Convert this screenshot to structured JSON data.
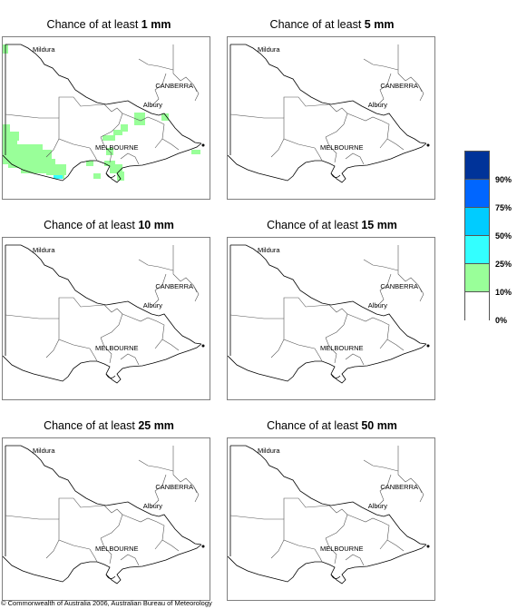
{
  "panels": [
    {
      "prefix": "Chance of at least ",
      "value": "1 mm"
    },
    {
      "prefix": "Chance of at least ",
      "value": "5 mm"
    },
    {
      "prefix": "Chance of at least ",
      "value": "10 mm"
    },
    {
      "prefix": "Chance of at least ",
      "value": "15 mm"
    },
    {
      "prefix": "Chance of at least ",
      "value": "25 mm"
    },
    {
      "prefix": "Chance of at least ",
      "value": "50 mm"
    }
  ],
  "places": {
    "mildura": "Mildura",
    "canberra": "CANBERRA",
    "albury": "Albury",
    "melbourne": "MELBOURNE"
  },
  "legend": {
    "labels": [
      "90%",
      "75%",
      "50%",
      "25%",
      "10%",
      "0%"
    ],
    "colors": [
      "#003399",
      "#0066ff",
      "#00ccff",
      "#33ffff",
      "#99ff99",
      "#ffffff"
    ]
  },
  "colors": {
    "rain_10_25": "#99ff99",
    "rain_25_50": "#33ffff",
    "outline": "#000000"
  },
  "copyright": "© Commonwealth of Australia 2006, Australian Bureau of Meteorology"
}
